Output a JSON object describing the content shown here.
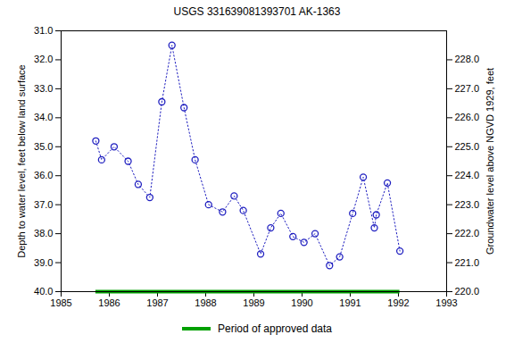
{
  "chart_data": {
    "type": "line",
    "title": "USGS 331639081393701 AK-1363",
    "y_label": "Depth to water level, feet below land surface",
    "y2_label": "Groundwater level above NGVD 1929, feet",
    "x": [
      1985.72,
      1985.84,
      1986.1,
      1986.39,
      1986.6,
      1986.84,
      1987.09,
      1987.3,
      1987.55,
      1987.78,
      1988.06,
      1988.35,
      1988.59,
      1988.78,
      1989.14,
      1989.35,
      1989.56,
      1989.81,
      1990.04,
      1990.27,
      1990.57,
      1990.78,
      1991.05,
      1991.27,
      1991.5,
      1991.54,
      1991.77,
      1992.03
    ],
    "series": [
      {
        "color": "#2020c0",
        "marker": "circle",
        "line_style": "dotted",
        "values": [
          34.8,
          35.45,
          35.0,
          35.5,
          36.3,
          36.75,
          33.45,
          31.5,
          33.65,
          35.45,
          37.0,
          37.25,
          36.7,
          37.2,
          38.7,
          37.8,
          37.3,
          38.1,
          38.3,
          38.0,
          39.1,
          38.8,
          37.3,
          36.05,
          37.8,
          37.35,
          36.25,
          38.6
        ]
      }
    ],
    "approved_period": {
      "name": "Period of approved data",
      "color": "#00a000",
      "x": [
        1985.72,
        1992.03
      ]
    },
    "xlim": [
      1985,
      1993
    ],
    "xticks": [
      1985,
      1986,
      1987,
      1988,
      1989,
      1990,
      1991,
      1992,
      1993
    ],
    "ylim": [
      40,
      31
    ],
    "yticks": [
      {
        "value": 31,
        "label": "31.0"
      },
      {
        "value": 32,
        "label": "32.0"
      },
      {
        "value": 33,
        "label": "33.0"
      },
      {
        "value": 34,
        "label": "34.0"
      },
      {
        "value": 35,
        "label": "35.0"
      },
      {
        "value": 36,
        "label": "36.0"
      },
      {
        "value": 37,
        "label": "37.0"
      },
      {
        "value": 38,
        "label": "38.0"
      },
      {
        "value": 39,
        "label": "39.0"
      },
      {
        "value": 40,
        "label": "40.0"
      }
    ],
    "y2lim": [
      220,
      229
    ],
    "y2ticks": [
      {
        "value": 220,
        "label": "220.0"
      },
      {
        "value": 221,
        "label": "221.0"
      },
      {
        "value": 222,
        "label": "222.0"
      },
      {
        "value": 223,
        "label": "223.0"
      },
      {
        "value": 224,
        "label": "224.0"
      },
      {
        "value": 225,
        "label": "225.0"
      },
      {
        "value": 226,
        "label": "226.0"
      },
      {
        "value": 227,
        "label": "227.0"
      },
      {
        "value": 228,
        "label": "228.0"
      }
    ],
    "legend": "bottom",
    "grid": false
  }
}
